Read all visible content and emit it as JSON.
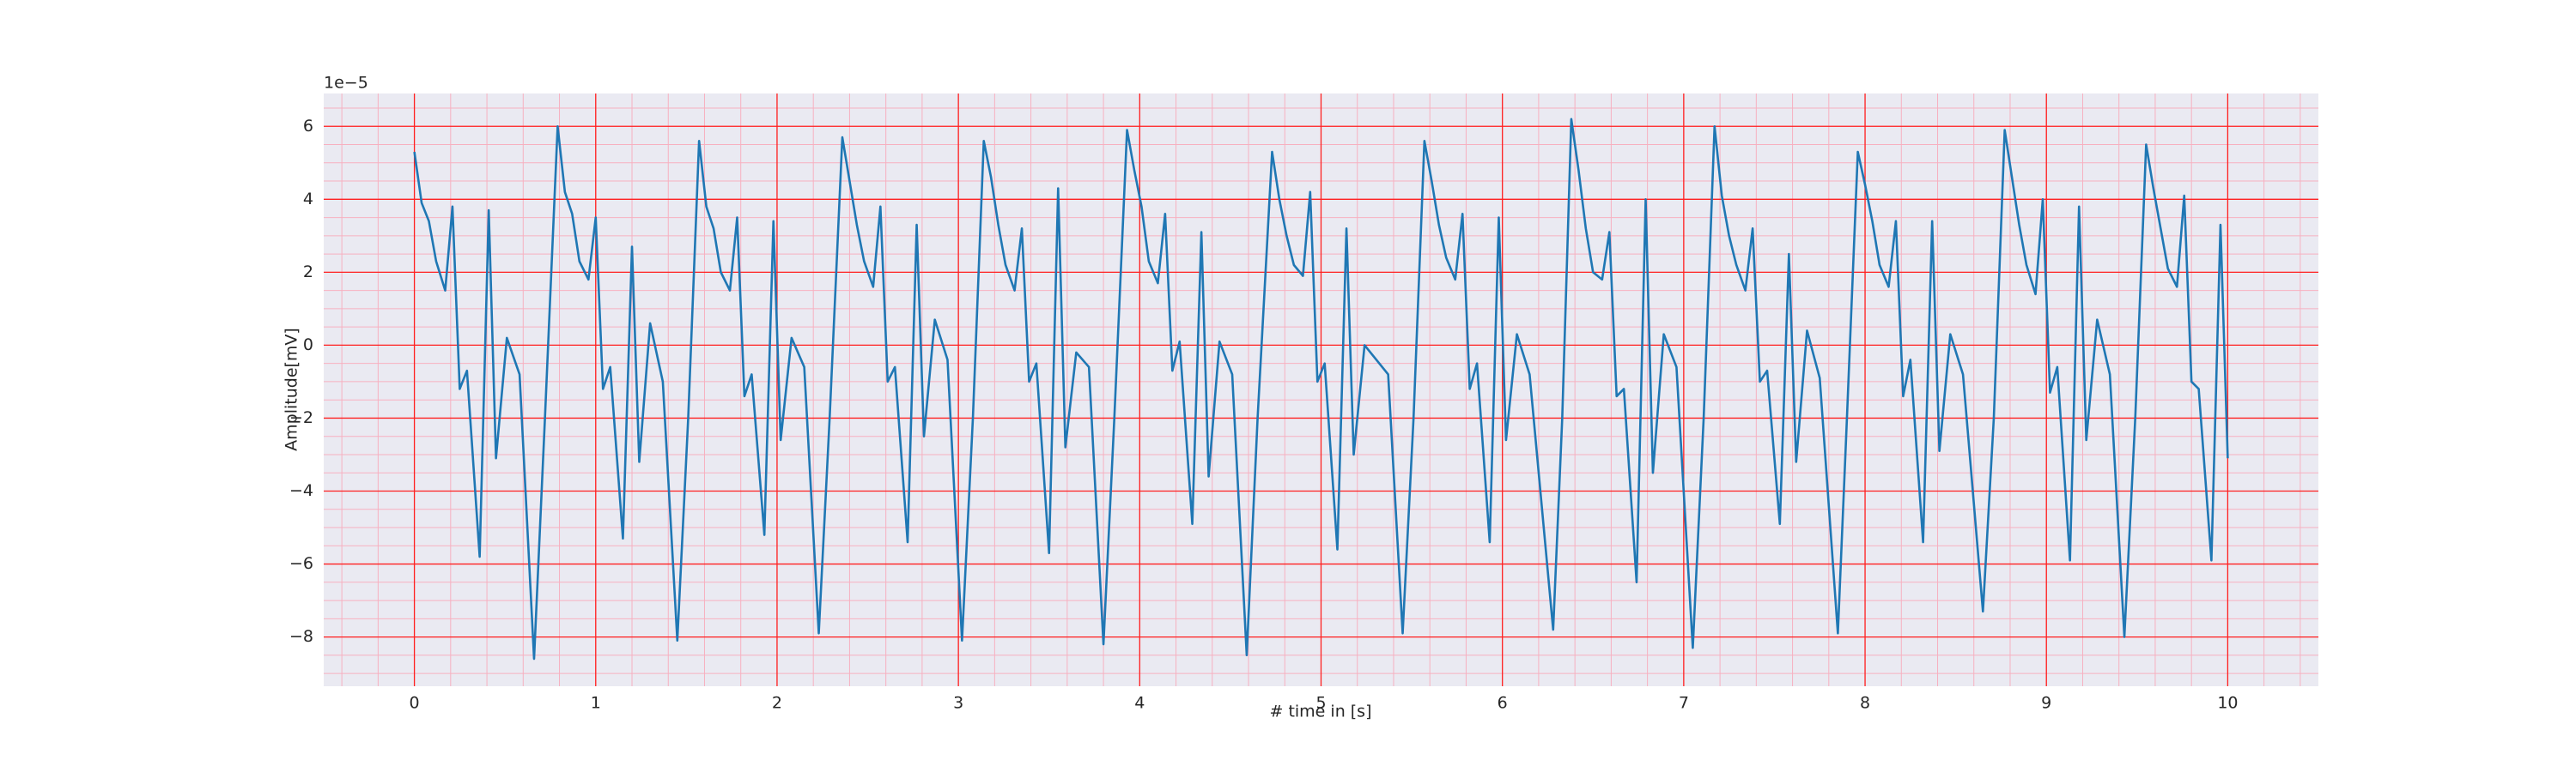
{
  "chart_data": {
    "type": "line",
    "xlabel": "# time in [s]",
    "ylabel": "Amplitude[mV]",
    "offset_text": "1e−5",
    "xlim": [
      -0.5,
      10.5
    ],
    "ylim": [
      -9.35,
      6.9
    ],
    "xticks": [
      0,
      1,
      2,
      3,
      4,
      5,
      6,
      7,
      8,
      9,
      10
    ],
    "yticks": [
      {
        "value": -8,
        "label": "−8"
      },
      {
        "value": -6,
        "label": "−6"
      },
      {
        "value": -4,
        "label": "−4"
      },
      {
        "value": -2,
        "label": "−2"
      },
      0,
      2,
      4,
      6
    ],
    "grid": true,
    "grid_color": "#ff2020",
    "minor_grid_color": "#f7b0c0",
    "x_minor_per_major": 5,
    "y_minor_per_major": 4,
    "background": "#eaeaf2",
    "series": [
      {
        "color": "#1f77b4",
        "x": [
          0,
          0.04,
          0.08,
          0.12,
          0.17,
          0.21,
          0.25,
          0.29,
          0.36,
          0.41,
          0.45,
          0.51,
          0.58,
          0.66,
          0.72,
          0.79,
          0.83,
          0.87,
          0.91,
          0.96,
          1.0,
          1.04,
          1.08,
          1.15,
          1.2,
          1.24,
          1.3,
          1.37,
          1.45,
          1.51,
          1.57,
          1.61,
          1.65,
          1.69,
          1.74,
          1.78,
          1.82,
          1.86,
          1.93,
          1.98,
          2.02,
          2.08,
          2.15,
          2.23,
          2.29,
          2.36,
          2.4,
          2.44,
          2.48,
          2.53,
          2.57,
          2.61,
          2.65,
          2.72,
          2.77,
          2.81,
          2.87,
          2.94,
          3.02,
          3.08,
          3.14,
          3.18,
          3.22,
          3.26,
          3.31,
          3.35,
          3.39,
          3.43,
          3.5,
          3.55,
          3.59,
          3.65,
          3.72,
          3.8,
          3.86,
          3.93,
          3.97,
          4.01,
          4.05,
          4.1,
          4.14,
          4.18,
          4.22,
          4.29,
          4.34,
          4.38,
          4.44,
          4.51,
          4.59,
          4.65,
          4.73,
          4.77,
          4.81,
          4.85,
          4.9,
          4.94,
          4.98,
          5.02,
          5.09,
          5.14,
          5.18,
          5.24,
          5.37,
          5.45,
          5.51,
          5.57,
          5.61,
          5.65,
          5.69,
          5.74,
          5.78,
          5.82,
          5.86,
          5.93,
          5.98,
          6.02,
          6.08,
          6.15,
          6.28,
          6.33,
          6.38,
          6.42,
          6.46,
          6.5,
          6.55,
          6.59,
          6.63,
          6.67,
          6.74,
          6.79,
          6.83,
          6.89,
          6.96,
          7.05,
          7.11,
          7.17,
          7.21,
          7.25,
          7.29,
          7.34,
          7.38,
          7.42,
          7.46,
          7.53,
          7.58,
          7.62,
          7.68,
          7.75,
          7.85,
          7.9,
          7.96,
          8.0,
          8.04,
          8.08,
          8.13,
          8.17,
          8.21,
          8.25,
          8.32,
          8.37,
          8.41,
          8.47,
          8.54,
          8.65,
          8.71,
          8.77,
          8.81,
          8.85,
          8.89,
          8.94,
          8.98,
          9.02,
          9.06,
          9.13,
          9.18,
          9.22,
          9.28,
          9.35,
          9.43,
          9.49,
          9.55,
          9.59,
          9.63,
          9.67,
          9.72,
          9.76,
          9.8,
          9.84,
          9.91,
          9.96,
          10.0
        ],
        "values": [
          5.3,
          3.9,
          3.4,
          2.3,
          1.5,
          3.8,
          -1.2,
          -0.7,
          -5.8,
          3.7,
          -3.1,
          0.2,
          -0.8,
          -8.6,
          -2.0,
          6.0,
          4.2,
          3.6,
          2.3,
          1.8,
          3.5,
          -1.2,
          -0.6,
          -5.3,
          2.7,
          -3.2,
          0.6,
          -1.0,
          -8.1,
          -2.0,
          5.6,
          3.8,
          3.2,
          2.0,
          1.5,
          3.5,
          -1.4,
          -0.8,
          -5.2,
          3.4,
          -2.6,
          0.2,
          -0.6,
          -7.9,
          -2.0,
          5.7,
          4.5,
          3.3,
          2.3,
          1.6,
          3.8,
          -1.0,
          -0.6,
          -5.4,
          3.3,
          -2.5,
          0.7,
          -0.4,
          -8.1,
          -2.0,
          5.6,
          4.6,
          3.3,
          2.2,
          1.5,
          3.2,
          -1.0,
          -0.5,
          -5.7,
          4.3,
          -2.8,
          -0.2,
          -0.6,
          -8.2,
          -2.0,
          5.9,
          4.8,
          3.8,
          2.3,
          1.7,
          3.6,
          -0.7,
          0.1,
          -4.9,
          3.1,
          -3.6,
          0.1,
          -0.8,
          -8.5,
          -2.0,
          5.3,
          4.0,
          3.0,
          2.2,
          1.9,
          4.2,
          -1.0,
          -0.5,
          -5.6,
          3.2,
          -3.0,
          0.0,
          -0.8,
          -7.9,
          -2.0,
          5.6,
          4.5,
          3.3,
          2.4,
          1.8,
          3.6,
          -1.2,
          -0.5,
          -5.4,
          3.5,
          -2.6,
          0.3,
          -0.8,
          -7.8,
          -2.0,
          6.2,
          4.8,
          3.2,
          2.0,
          1.8,
          3.1,
          -1.4,
          -1.2,
          -6.5,
          4.0,
          -3.5,
          0.3,
          -0.6,
          -8.3,
          -2.0,
          6.0,
          4.1,
          3.0,
          2.2,
          1.5,
          3.2,
          -1.0,
          -0.7,
          -4.9,
          2.5,
          -3.2,
          0.4,
          -0.9,
          -7.9,
          -2.0,
          5.3,
          4.4,
          3.4,
          2.2,
          1.6,
          3.4,
          -1.4,
          -0.4,
          -5.4,
          3.4,
          -2.9,
          0.3,
          -0.8,
          -7.3,
          -2.0,
          5.9,
          4.6,
          3.3,
          2.2,
          1.4,
          4.0,
          -1.3,
          -0.6,
          -5.9,
          3.8,
          -2.6,
          0.7,
          -0.8,
          -8.0,
          -2.0,
          5.5,
          4.3,
          3.2,
          2.1,
          1.6,
          4.1,
          -1.0,
          -1.2,
          -5.9,
          3.3,
          -3.1
        ]
      }
    ]
  }
}
